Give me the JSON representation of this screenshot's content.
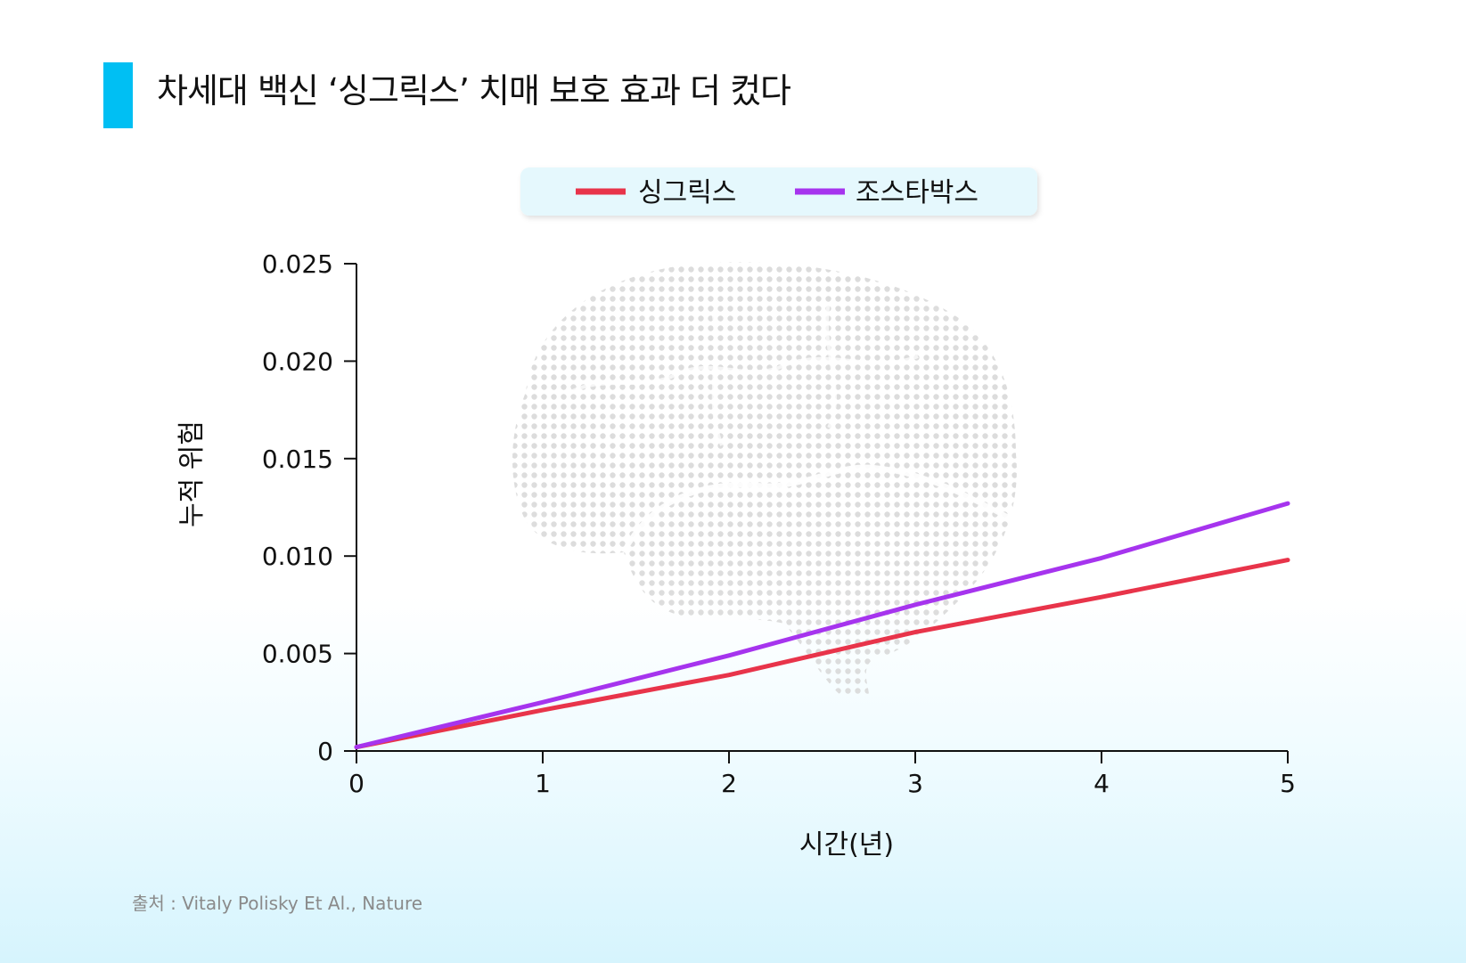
{
  "header": {
    "title": "차세대 백신 ‘싱그릭스’ 치매 보호 효과 더 컸다",
    "accent_color": "#00bff3"
  },
  "source": "출처 : Vitaly Polisky Et Al., Nature",
  "background_icon": "brain-halftone-icon",
  "chart_data": {
    "type": "line",
    "x": [
      0,
      1,
      2,
      3,
      4,
      5
    ],
    "x_ticks": [
      "0",
      "1",
      "2",
      "3",
      "4",
      "5"
    ],
    "y_ticks": [
      "0",
      "0.005",
      "0.010",
      "0.015",
      "0.020",
      "0.025"
    ],
    "xlabel": "시간(년)",
    "ylabel": "누적 위험",
    "xlim": [
      0,
      5
    ],
    "ylim": [
      0,
      0.025
    ],
    "grid": false,
    "legend_position": "top-center",
    "series": [
      {
        "name": "싱그릭스",
        "color": "#e8344a",
        "values": [
          0.0002,
          0.0021,
          0.0039,
          0.0061,
          0.0079,
          0.0098
        ]
      },
      {
        "name": "조스타박스",
        "color": "#a634ee",
        "values": [
          0.0002,
          0.0025,
          0.0049,
          0.0075,
          0.0099,
          0.0127
        ]
      }
    ]
  }
}
